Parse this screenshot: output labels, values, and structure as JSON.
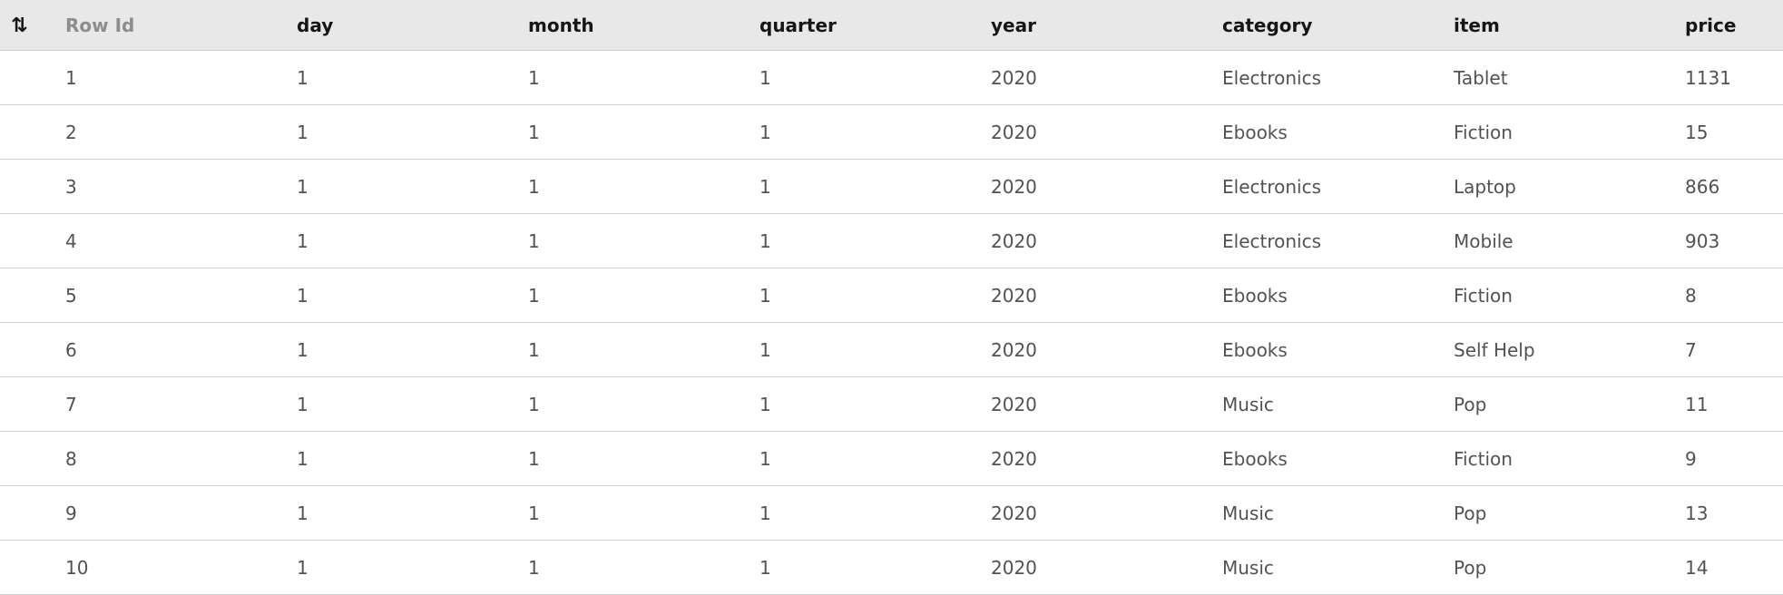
{
  "table": {
    "sort_icon": "sort-arrows-icon",
    "columns": {
      "row_id": "Row Id",
      "day": "day",
      "month": "month",
      "quarter": "quarter",
      "year": "year",
      "category": "category",
      "item": "item",
      "price": "price"
    },
    "rows": [
      {
        "row_id": "1",
        "day": "1",
        "month": "1",
        "quarter": "1",
        "year": "2020",
        "category": "Electronics",
        "item": "Tablet",
        "price": "1131"
      },
      {
        "row_id": "2",
        "day": "1",
        "month": "1",
        "quarter": "1",
        "year": "2020",
        "category": "Ebooks",
        "item": "Fiction",
        "price": "15"
      },
      {
        "row_id": "3",
        "day": "1",
        "month": "1",
        "quarter": "1",
        "year": "2020",
        "category": "Electronics",
        "item": "Laptop",
        "price": "866"
      },
      {
        "row_id": "4",
        "day": "1",
        "month": "1",
        "quarter": "1",
        "year": "2020",
        "category": "Electronics",
        "item": "Mobile",
        "price": "903"
      },
      {
        "row_id": "5",
        "day": "1",
        "month": "1",
        "quarter": "1",
        "year": "2020",
        "category": "Ebooks",
        "item": "Fiction",
        "price": "8"
      },
      {
        "row_id": "6",
        "day": "1",
        "month": "1",
        "quarter": "1",
        "year": "2020",
        "category": "Ebooks",
        "item": "Self Help",
        "price": "7"
      },
      {
        "row_id": "7",
        "day": "1",
        "month": "1",
        "quarter": "1",
        "year": "2020",
        "category": "Music",
        "item": "Pop",
        "price": "11"
      },
      {
        "row_id": "8",
        "day": "1",
        "month": "1",
        "quarter": "1",
        "year": "2020",
        "category": "Ebooks",
        "item": "Fiction",
        "price": "9"
      },
      {
        "row_id": "9",
        "day": "1",
        "month": "1",
        "quarter": "1",
        "year": "2020",
        "category": "Music",
        "item": "Pop",
        "price": "13"
      },
      {
        "row_id": "10",
        "day": "1",
        "month": "1",
        "quarter": "1",
        "year": "2020",
        "category": "Music",
        "item": "Pop",
        "price": "14"
      }
    ]
  }
}
